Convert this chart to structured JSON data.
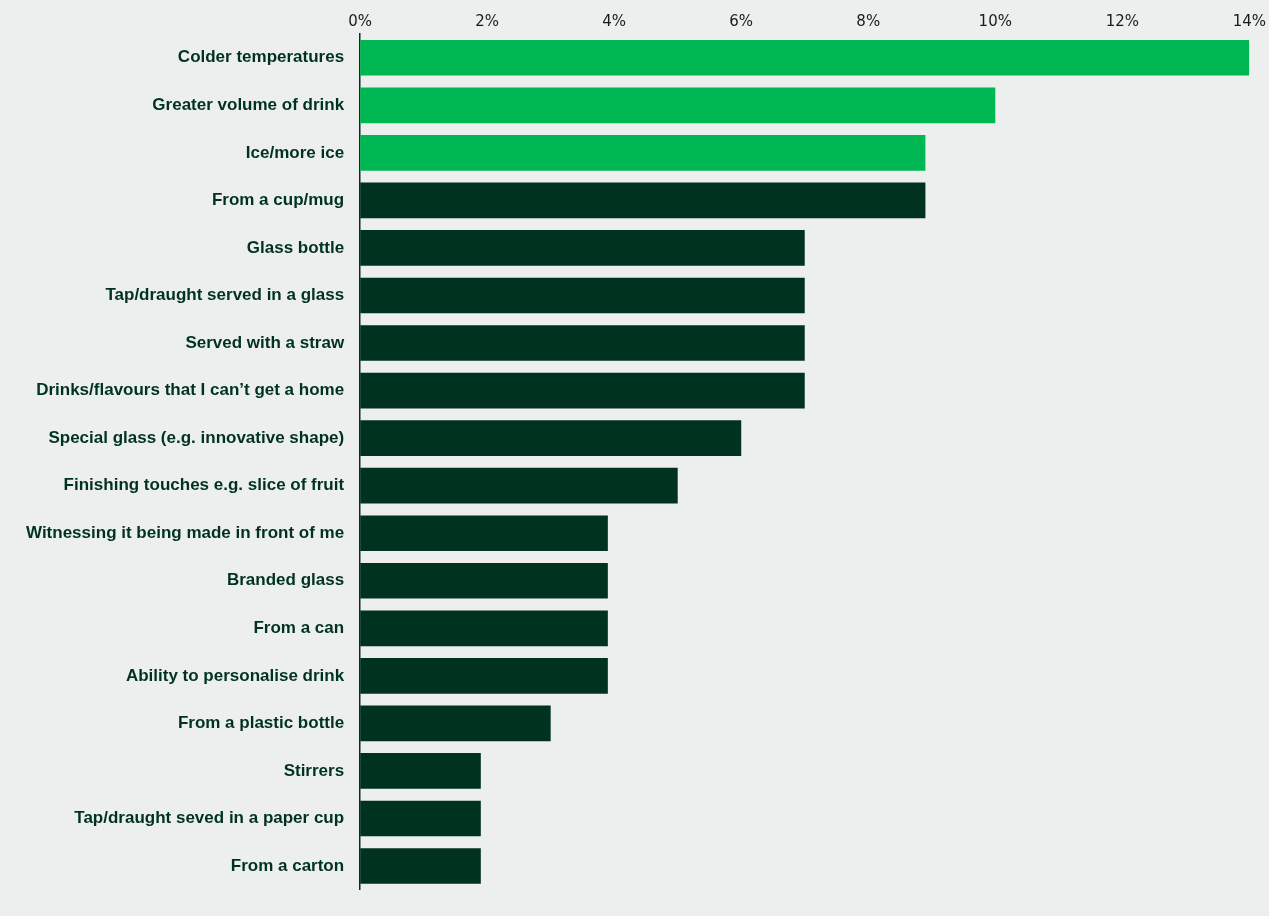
{
  "chart_data": {
    "type": "bar",
    "orientation": "horizontal",
    "categories": [
      "Colder temperatures",
      "Greater volume of drink",
      "Ice/more ice",
      "From a cup/mug",
      "Glass bottle",
      "Tap/draught served in a glass",
      "Served with a straw",
      "Drinks/flavours that I can’t get a home",
      "Special glass (e.g. innovative shape)",
      "Finishing touches e.g. slice of fruit",
      "Witnessing it being made in front of me",
      "Branded glass",
      "From a can",
      "Ability to personalise drink",
      "From a plastic bottle",
      "Stirrers",
      "Tap/draught seved in a paper cup",
      "From a carton"
    ],
    "values": [
      14,
      10,
      8.9,
      8.9,
      7,
      7,
      7,
      7,
      6,
      5,
      3.9,
      3.9,
      3.9,
      3.9,
      3,
      1.9,
      1.9,
      1.9
    ],
    "colors": [
      "#00b853",
      "#00b853",
      "#00b853",
      "#003220",
      "#003220",
      "#003220",
      "#003220",
      "#003220",
      "#003220",
      "#003220",
      "#003220",
      "#003220",
      "#003220",
      "#003220",
      "#003220",
      "#003220",
      "#003220",
      "#003220"
    ],
    "xlim": [
      0,
      14
    ],
    "xticks": [
      {
        "value": 0,
        "label": "0%"
      },
      {
        "value": 2,
        "label": "2%"
      },
      {
        "value": 4,
        "label": "4%"
      },
      {
        "value": 6,
        "label": "6%"
      },
      {
        "value": 8,
        "label": "8%"
      },
      {
        "value": 10,
        "label": "10%"
      },
      {
        "value": 12,
        "label": "12%"
      },
      {
        "value": 14,
        "label": "14%"
      }
    ],
    "grid": false,
    "legend": false
  }
}
